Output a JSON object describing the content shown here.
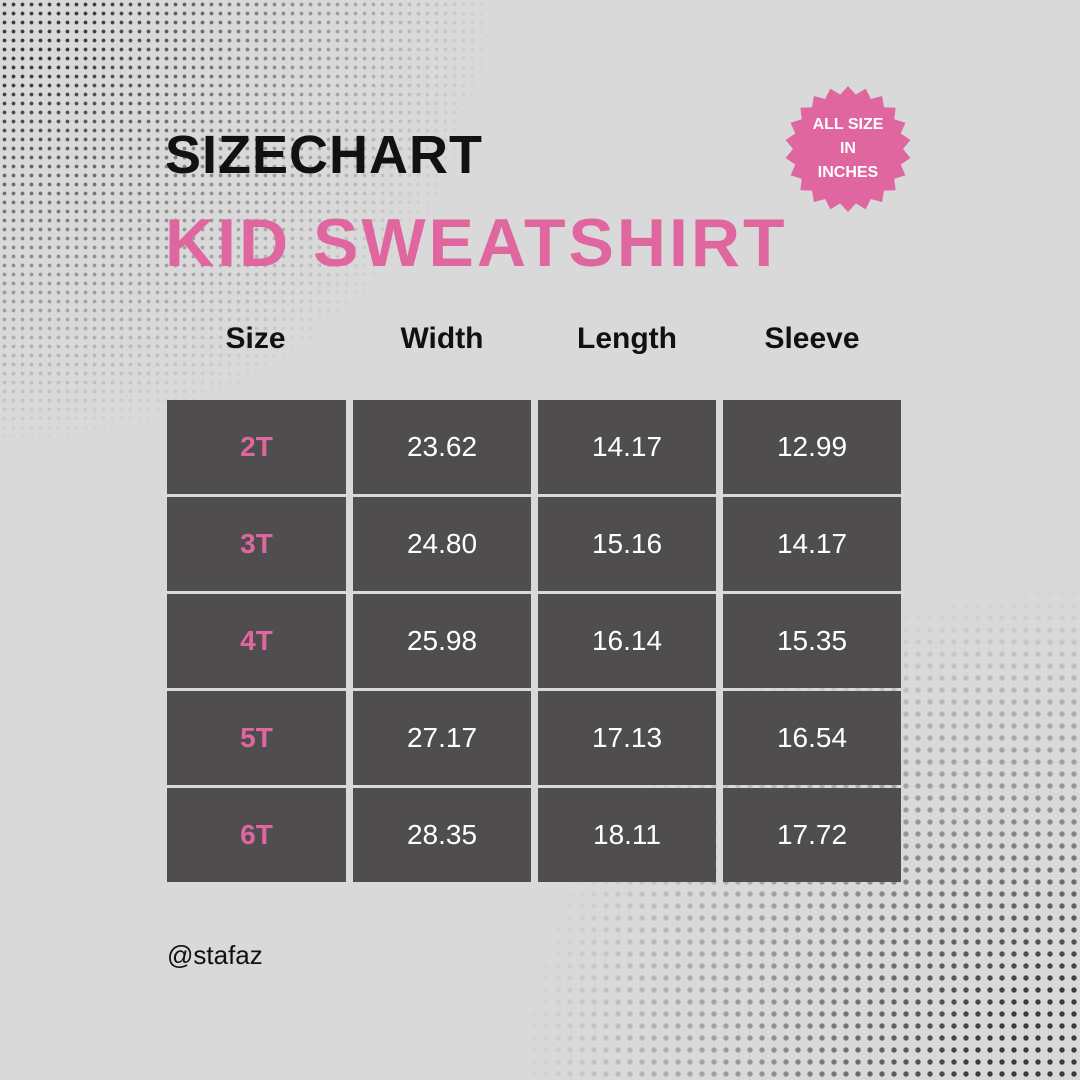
{
  "title": "SIZECHART",
  "subtitle": "KID SWEATSHIRT",
  "badge": {
    "line1": "ALL SIZE",
    "line2": "IN",
    "line3": "INCHES",
    "color": "#e066a0"
  },
  "table": {
    "headers": [
      "Size",
      "Width",
      "Length",
      "Sleeve"
    ],
    "rows": [
      [
        "2T",
        "23.62",
        "14.17",
        "12.99"
      ],
      [
        "3T",
        "24.80",
        "15.16",
        "14.17"
      ],
      [
        "4T",
        "25.98",
        "16.14",
        "15.35"
      ],
      [
        "5T",
        "27.17",
        "17.13",
        "16.54"
      ],
      [
        "6T",
        "28.35",
        "18.11",
        "17.72"
      ]
    ]
  },
  "handle": "@stafaz",
  "colors": {
    "background": "#d9d9d9",
    "cell": "#4f4d4e",
    "accent": "#e066a0"
  }
}
